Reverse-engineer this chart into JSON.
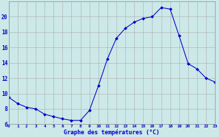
{
  "hours": [
    0,
    1,
    2,
    3,
    4,
    5,
    6,
    7,
    8,
    9,
    10,
    11,
    12,
    13,
    14,
    15,
    16,
    17,
    18,
    19,
    20,
    21,
    22,
    23
  ],
  "temps": [
    9.5,
    8.7,
    8.2,
    8.0,
    7.3,
    7.0,
    6.7,
    6.5,
    6.5,
    7.8,
    11.0,
    14.5,
    17.2,
    18.5,
    19.3,
    19.8,
    20.0,
    21.2,
    21.0,
    17.5,
    13.9,
    13.2,
    12.0,
    11.5
  ],
  "line_color": "#0000cc",
  "marker": "D",
  "marker_size": 2.0,
  "bg_color": "#cce8e8",
  "grid_color": "#aaaaaa",
  "xlabel": "Graphe des températures (°C)",
  "xlabel_color": "#0000cc",
  "tick_color": "#0000cc",
  "xlim": [
    0,
    23
  ],
  "ylim": [
    6,
    22
  ],
  "yticks": [
    6,
    8,
    10,
    12,
    14,
    16,
    18,
    20
  ],
  "xticks": [
    0,
    1,
    2,
    3,
    4,
    5,
    6,
    7,
    8,
    9,
    10,
    11,
    12,
    13,
    14,
    15,
    16,
    17,
    18,
    19,
    20,
    21,
    22,
    23
  ]
}
